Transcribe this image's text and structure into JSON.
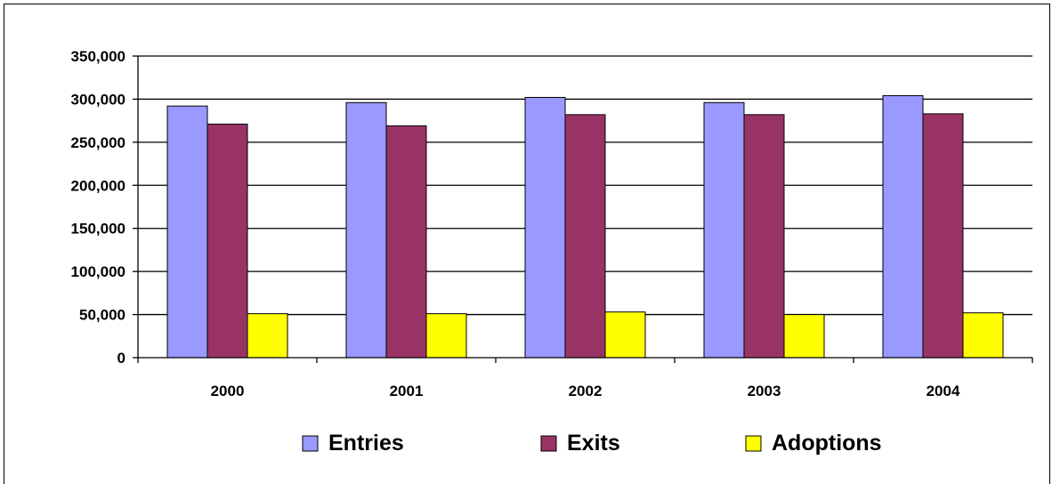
{
  "chart_data": {
    "type": "bar",
    "title": "",
    "xlabel": "",
    "ylabel": "",
    "categories": [
      "2000",
      "2001",
      "2002",
      "2003",
      "2004"
    ],
    "series": [
      {
        "name": "Entries",
        "values": [
          292000,
          296000,
          302000,
          296000,
          304000
        ],
        "color": "#9999ff"
      },
      {
        "name": "Exits",
        "values": [
          271000,
          269000,
          282000,
          282000,
          283000
        ],
        "color": "#993366"
      },
      {
        "name": "Adoptions",
        "values": [
          51000,
          51000,
          53000,
          50000,
          52000
        ],
        "color": "#ffff00"
      }
    ],
    "ylim": [
      0,
      350000
    ],
    "yticks": [
      0,
      50000,
      100000,
      150000,
      200000,
      250000,
      300000,
      350000
    ],
    "ytick_labels": [
      "0",
      "50,000",
      "100,000",
      "150,000",
      "200,000",
      "250,000",
      "300,000",
      "350,000"
    ],
    "grid": "horizontal",
    "legend_position": "bottom"
  }
}
